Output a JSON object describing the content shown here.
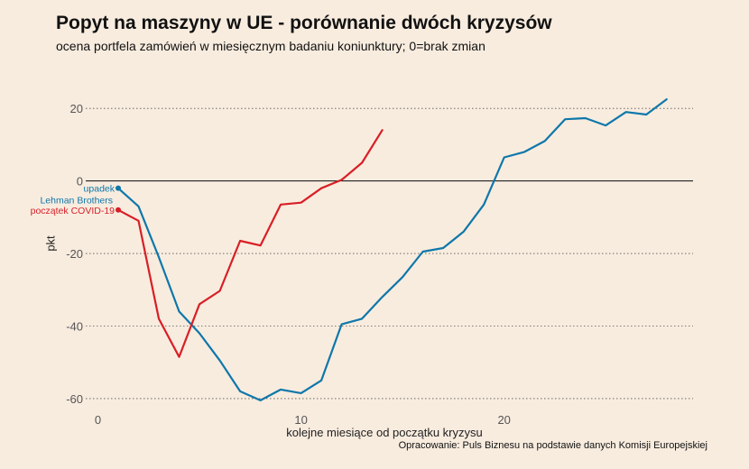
{
  "chart_data": {
    "type": "line",
    "title": "Popyt na maszyny w UE - porównanie dwóch kryzysów",
    "subtitle": "ocena portfela zamówień w miesięcznym badaniu koniunktury; 0=brak zmian",
    "xlabel": "kolejne miesiące od początku kryzysu",
    "ylabel": "pkt",
    "source": "Opracowanie: Puls Biznesu na podstawie danych Komisji Europejskiej",
    "xlim": [
      -0.6,
      29.3
    ],
    "ylim": [
      -64,
      28
    ],
    "x_ticks": [
      0,
      10,
      20
    ],
    "y_ticks": [
      20,
      0,
      -20,
      -40,
      -60
    ],
    "grid": "horizontal dotted",
    "zero_line": true,
    "series": [
      {
        "name": "upadek Lehman Brothers",
        "color": "#0e77aa",
        "x": [
          1,
          2,
          3,
          4,
          5,
          6,
          7,
          8,
          9,
          10,
          11,
          12,
          13,
          14,
          15,
          16,
          17,
          18,
          19,
          20,
          21,
          22,
          23,
          24,
          25,
          26,
          27,
          28
        ],
        "y": [
          -2,
          -7,
          -21,
          -36,
          -42,
          -49.5,
          -58,
          -60.5,
          -57.5,
          -58.5,
          -55,
          -39.5,
          -38,
          -32,
          -26.5,
          -19.5,
          -18.5,
          -14,
          -6.5,
          6.5,
          8,
          11,
          17,
          17.3,
          15.3,
          19,
          18.3,
          22.5
        ]
      },
      {
        "name": "początek COVID-19",
        "color": "#d81f26",
        "x": [
          1,
          2,
          3,
          4,
          5,
          6,
          7,
          8,
          9,
          10,
          11,
          12,
          13,
          14
        ],
        "y": [
          -8,
          -11,
          -38,
          -48.5,
          -34,
          -30.3,
          -16.5,
          -17.8,
          -6.5,
          -6,
          -2,
          0.3,
          5,
          14
        ]
      }
    ],
    "annotations": [
      {
        "series": 0,
        "lines": [
          "upadek",
          "Lehman Brothers"
        ]
      },
      {
        "series": 1,
        "lines": [
          "początek COVID-19"
        ]
      }
    ]
  }
}
